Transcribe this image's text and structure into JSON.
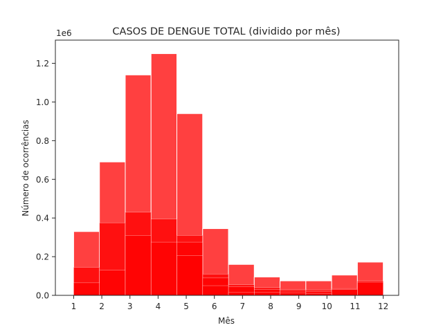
{
  "chart_data": {
    "type": "bar",
    "title": "CASOS DE DENGUE TOTAL (dividido por mês)",
    "xlabel": "Mês",
    "ylabel": "Número de ocorrências",
    "y_offset_label": "1e6",
    "x_ticks": [
      1,
      2,
      3,
      4,
      5,
      6,
      7,
      8,
      9,
      10,
      11,
      12
    ],
    "y_ticks": [
      "0.0",
      "0.2",
      "0.4",
      "0.6",
      "0.8",
      "1.0",
      "1.2"
    ],
    "y_tick_values": [
      0,
      0.2,
      0.4,
      0.6,
      0.8,
      1.0,
      1.2
    ],
    "xlim": [
      0.35,
      12.55
    ],
    "ylim": [
      0,
      1.32
    ],
    "y_multiplier": 1000000,
    "grid": false,
    "bar_color": "#ff0000",
    "bar_alpha": 0.75,
    "bin_edges": [
      1.0,
      1.9167,
      2.8333,
      3.75,
      4.6667,
      5.5833,
      6.5,
      7.4167,
      8.3333,
      9.25,
      10.1667,
      11.0833,
      12.0
    ],
    "months": [
      1,
      2,
      3,
      4,
      5,
      6,
      7,
      8,
      9,
      10,
      11,
      12
    ],
    "values": [
      0.33,
      0.69,
      1.14,
      1.25,
      0.94,
      0.345,
      0.16,
      0.095,
      0.075,
      0.075,
      0.105,
      0.172
    ],
    "overlay_layers": [
      [
        0.145,
        0.375,
        0.43,
        0.395,
        0.31,
        0.11,
        0.055,
        0.04,
        0.03,
        0.028,
        0.035,
        0.075
      ],
      [
        0.065,
        0.13,
        0.31,
        0.275,
        0.275,
        0.09,
        0.045,
        0.03,
        0.022,
        0.02,
        0.03,
        0.068
      ],
      [
        0.0,
        0.0,
        0.0,
        0.0,
        0.205,
        0.05,
        0.015,
        0.015,
        0.012,
        0.01,
        0.0,
        0.0
      ]
    ]
  }
}
